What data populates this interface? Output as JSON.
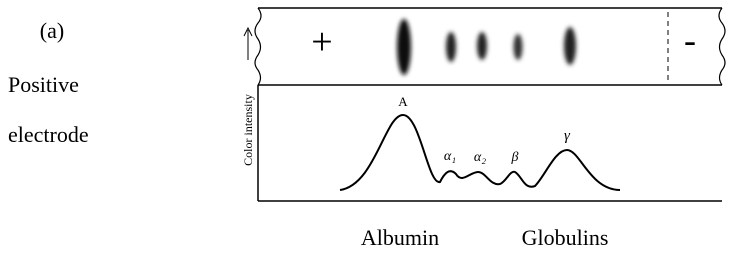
{
  "panel_label": "(a)",
  "side_text": [
    "Positive",
    "electrode"
  ],
  "gel": {
    "positive": "+",
    "negative": "-"
  },
  "axis_label": "Color intensity",
  "peaks": [
    "A",
    "α₁",
    "α₂",
    "β",
    "γ"
  ],
  "bottom_labels": [
    "Albumin",
    "Globulins"
  ]
}
